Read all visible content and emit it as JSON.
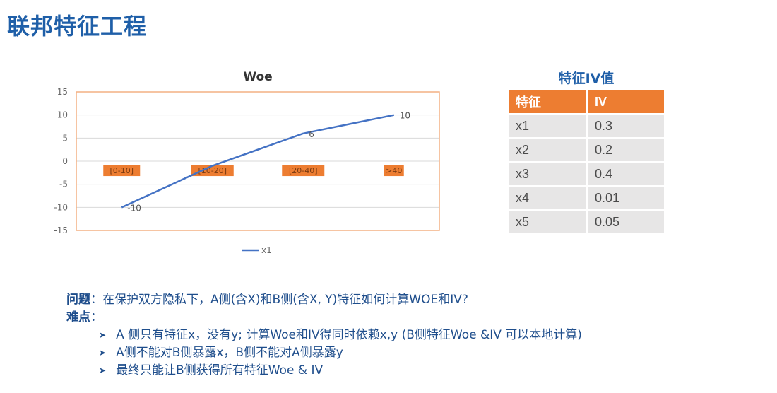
{
  "title": "联邦特征工程",
  "chart_data": {
    "type": "line",
    "title": "Woe",
    "categories": [
      "[0-10]",
      "[10-20]",
      "[20-40]",
      ">40"
    ],
    "series": [
      {
        "name": "x1",
        "values": [
          -10,
          -1,
          6,
          10
        ]
      }
    ],
    "data_labels": [
      "-10",
      "",
      "6",
      "10"
    ],
    "yticks": [
      "15",
      "10",
      "5",
      "0",
      "-5",
      "-10",
      "-15"
    ],
    "ylim": [
      -15,
      15
    ],
    "grid": true,
    "legend": "bottom",
    "colors": {
      "line": "#4472c4",
      "category_box": "#ed7d31",
      "plot_border": "#f4b183"
    }
  },
  "iv_table": {
    "title": "特征IV值",
    "headers": [
      "特征",
      "IV"
    ],
    "rows": [
      [
        "x1",
        "0.3"
      ],
      [
        "x2",
        "0.2"
      ],
      [
        "x3",
        "0.4"
      ],
      [
        "x4",
        "0.01"
      ],
      [
        "x5",
        "0.05"
      ]
    ]
  },
  "question": {
    "label": "问题",
    "text": "：在保护双方隐私下，A侧(含X)和B侧(含X, Y)特征如何计算WOE和IV?"
  },
  "difficulty": {
    "label": "难点",
    "colon": "：",
    "items": [
      "A 侧只有特征x，没有y; 计算Woe和IV得同时依赖x,y (B侧特征Woe &IV 可以本地计算)",
      "A侧不能对B侧暴露x，B侧不能对A侧暴露y",
      "最终只能让B侧获得所有特征Woe & IV"
    ]
  }
}
